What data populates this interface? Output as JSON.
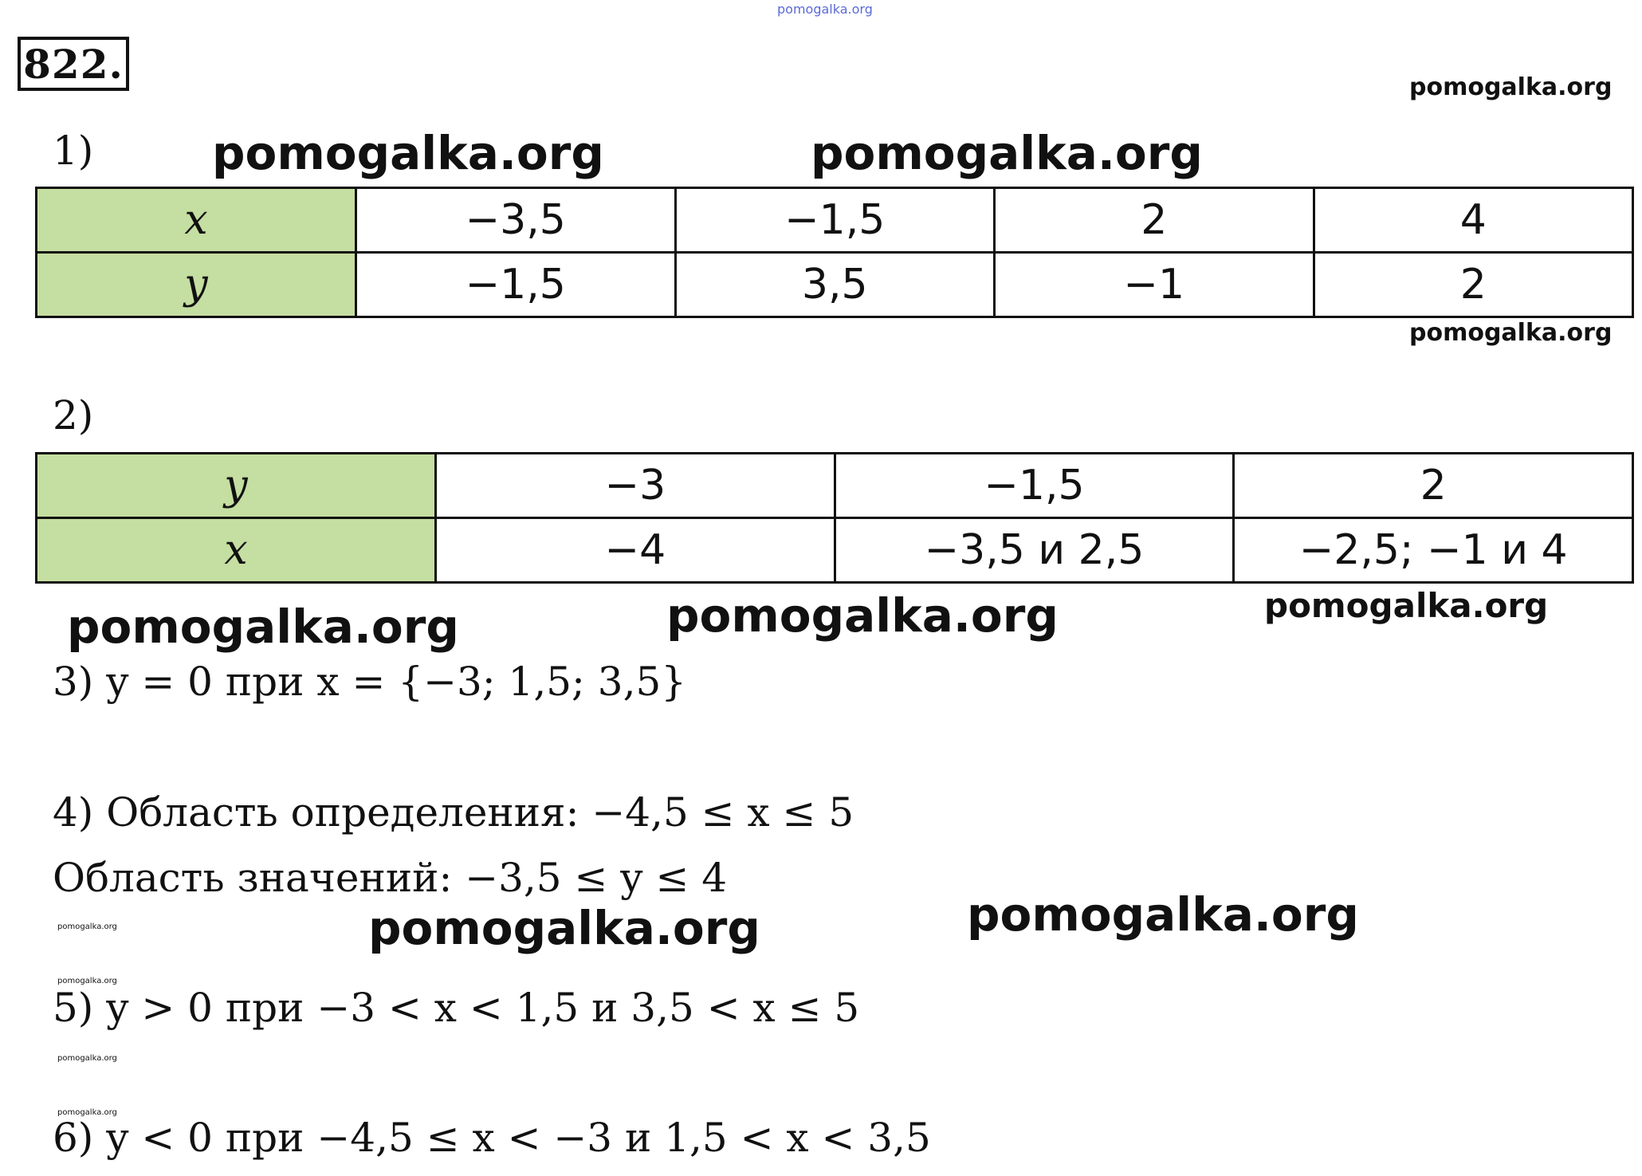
{
  "watermarks": {
    "top": "pomogalka.org",
    "w1": "pomogalka.org",
    "w2": "pomogalka.org",
    "w3": "pomogalka.org",
    "w4": "pomogalka.org",
    "w5": "pomogalka.org",
    "w6": "pomogalka.org",
    "w7": "pomogalka.org",
    "w8": "pomogalka.org",
    "w9": "pomogalka.org",
    "w10": "pomogalka.org",
    "t1": "pomogalka.org",
    "t2": "pomogalka.org",
    "t3": "pomogalka.org",
    "t4": "pomogalka.org"
  },
  "problem_number": "822.",
  "part1": {
    "label": "1)",
    "rows": [
      {
        "head": "x",
        "cells": [
          "−3,5",
          "−1,5",
          "2",
          "4"
        ]
      },
      {
        "head": "y",
        "cells": [
          "−1,5",
          "3,5",
          "−1",
          "2"
        ]
      }
    ]
  },
  "part2": {
    "label": "2)",
    "rows": [
      {
        "head": "y",
        "cells": [
          "−3",
          "−1,5",
          "2"
        ]
      },
      {
        "head": "x",
        "cells": [
          "−4",
          "−3,5 и 2,5",
          "−2,5; −1 и 4"
        ]
      }
    ]
  },
  "answers": {
    "a3": "3) y = 0 при x = {−3; 1,5; 3,5}",
    "a4_line1": "4) Область определения: −4,5 ≤ x ≤ 5",
    "a4_line2": "Область значений: −3,5 ≤ y ≤ 4",
    "a5": "5) y > 0 при −3 < x < 1,5 и 3,5 < x ≤ 5",
    "a6": "6) y < 0 при −4,5 ≤ x < −3 и 1,5 < x < 3,5"
  }
}
